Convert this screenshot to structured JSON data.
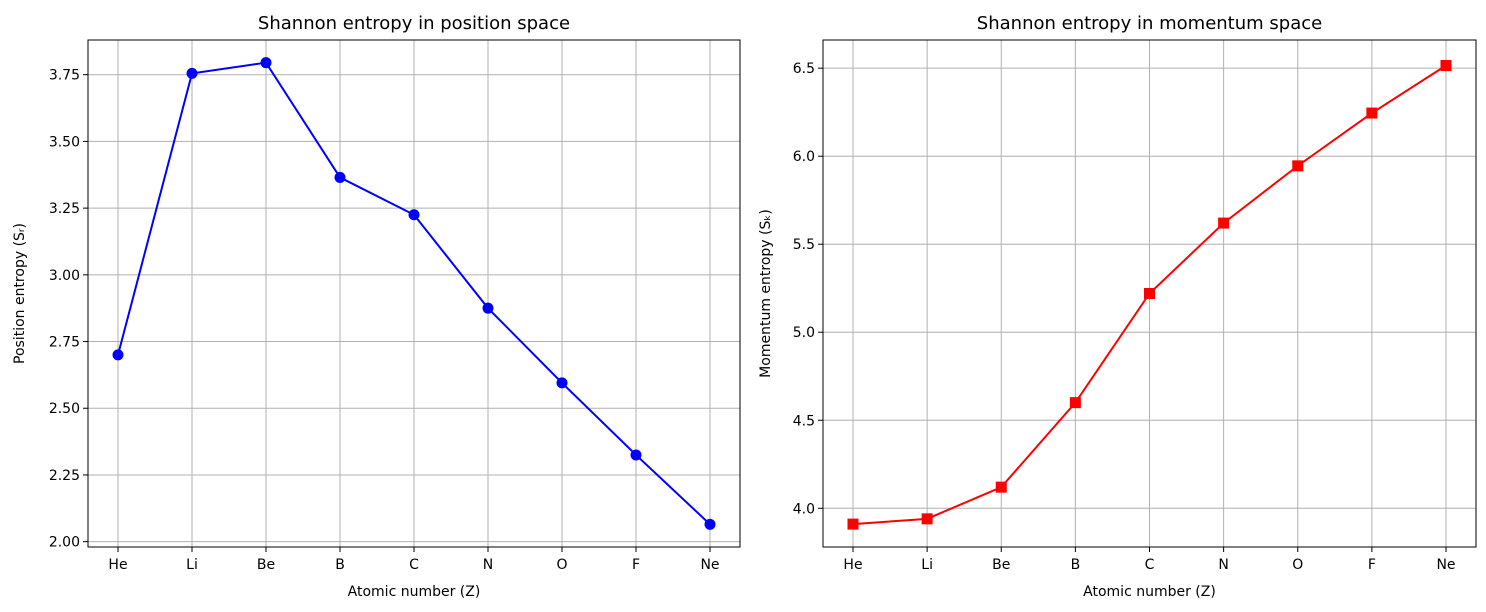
{
  "chart_data": [
    {
      "type": "line",
      "title": "Shannon entropy in position space",
      "xlabel": "Atomic number (Z)",
      "ylabel": "Position entropy (Sᵣ)",
      "categories": [
        "He",
        "Li",
        "Be",
        "B",
        "C",
        "N",
        "O",
        "F",
        "Ne"
      ],
      "series": [
        {
          "values": [
            2.7,
            3.755,
            3.795,
            3.365,
            3.225,
            2.875,
            2.595,
            2.325,
            2.065
          ],
          "color": "#0000ff",
          "marker": "circle"
        }
      ],
      "yticks": [
        2.0,
        2.25,
        2.5,
        2.75,
        3.0,
        3.25,
        3.5,
        3.75
      ],
      "ylim": [
        1.98,
        3.88
      ],
      "grid": true
    },
    {
      "type": "line",
      "title": "Shannon entropy in momentum space",
      "xlabel": "Atomic number (Z)",
      "ylabel": "Momentum entropy (Sₖ)",
      "categories": [
        "He",
        "Li",
        "Be",
        "B",
        "C",
        "N",
        "O",
        "F",
        "Ne"
      ],
      "series": [
        {
          "values": [
            3.91,
            3.94,
            4.12,
            4.6,
            5.22,
            5.62,
            5.945,
            6.245,
            6.515
          ],
          "color": "#ff0000",
          "marker": "square"
        }
      ],
      "yticks": [
        4.0,
        4.5,
        5.0,
        5.5,
        6.0,
        6.5
      ],
      "ylim": [
        3.78,
        6.66
      ],
      "grid": true
    }
  ]
}
